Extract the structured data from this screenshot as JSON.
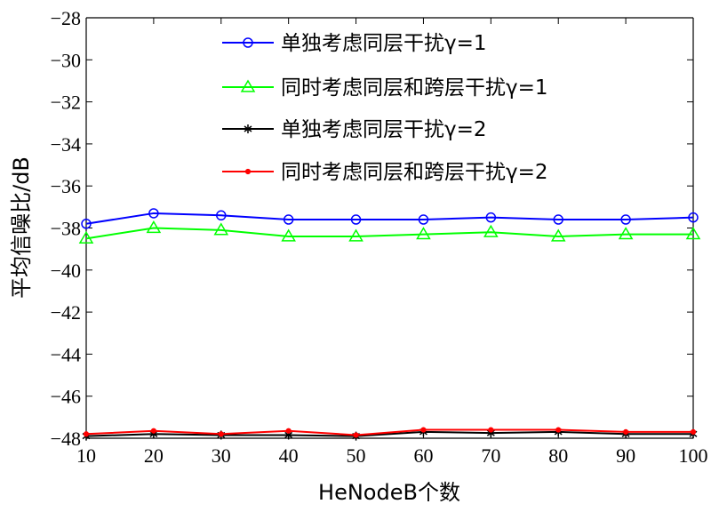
{
  "chart_data": {
    "type": "line",
    "xlabel": "HeNodeB个数",
    "ylabel": "平均信噪比/dB",
    "x": [
      10,
      20,
      30,
      40,
      50,
      60,
      70,
      80,
      90,
      100
    ],
    "xlim": [
      10,
      100
    ],
    "ylim": [
      -48,
      -28
    ],
    "xticks": [
      10,
      20,
      30,
      40,
      50,
      60,
      70,
      80,
      90,
      100
    ],
    "xtick_labels": [
      "10",
      "20",
      "30",
      "40",
      "50",
      "60",
      "70",
      "80",
      "90",
      "100"
    ],
    "yticks": [
      -48,
      -46,
      -44,
      -42,
      -40,
      -38,
      -36,
      -34,
      -32,
      -30,
      -28
    ],
    "ytick_labels": [
      "−48",
      "−46",
      "−44",
      "−42",
      "−40",
      "−38",
      "−36",
      "−34",
      "−32",
      "−30",
      "−28"
    ],
    "grid": false,
    "legend_position": "top-right",
    "series": [
      {
        "name": "单独考虑同层干扰γ=1",
        "color": "#0000ff",
        "marker": "circle",
        "values": [
          -37.8,
          -37.3,
          -37.4,
          -37.6,
          -37.6,
          -37.6,
          -37.5,
          -37.6,
          -37.6,
          -37.5
        ]
      },
      {
        "name": "同时考虑同层和跨层干扰γ=1",
        "color": "#00ff00",
        "marker": "triangle",
        "values": [
          -38.5,
          -38.0,
          -38.1,
          -38.4,
          -38.4,
          -38.3,
          -38.2,
          -38.4,
          -38.3,
          -38.3
        ]
      },
      {
        "name": "单独考虑同层干扰γ=2",
        "color": "#000000",
        "marker": "star",
        "values": [
          -47.9,
          -47.8,
          -47.85,
          -47.85,
          -47.9,
          -47.7,
          -47.75,
          -47.7,
          -47.8,
          -47.8
        ]
      },
      {
        "name": "同时考虑同层和跨层干扰γ=2",
        "color": "#ff0000",
        "marker": "dot",
        "values": [
          -47.8,
          -47.65,
          -47.8,
          -47.65,
          -47.85,
          -47.6,
          -47.6,
          -47.6,
          -47.7,
          -47.7
        ]
      }
    ]
  }
}
